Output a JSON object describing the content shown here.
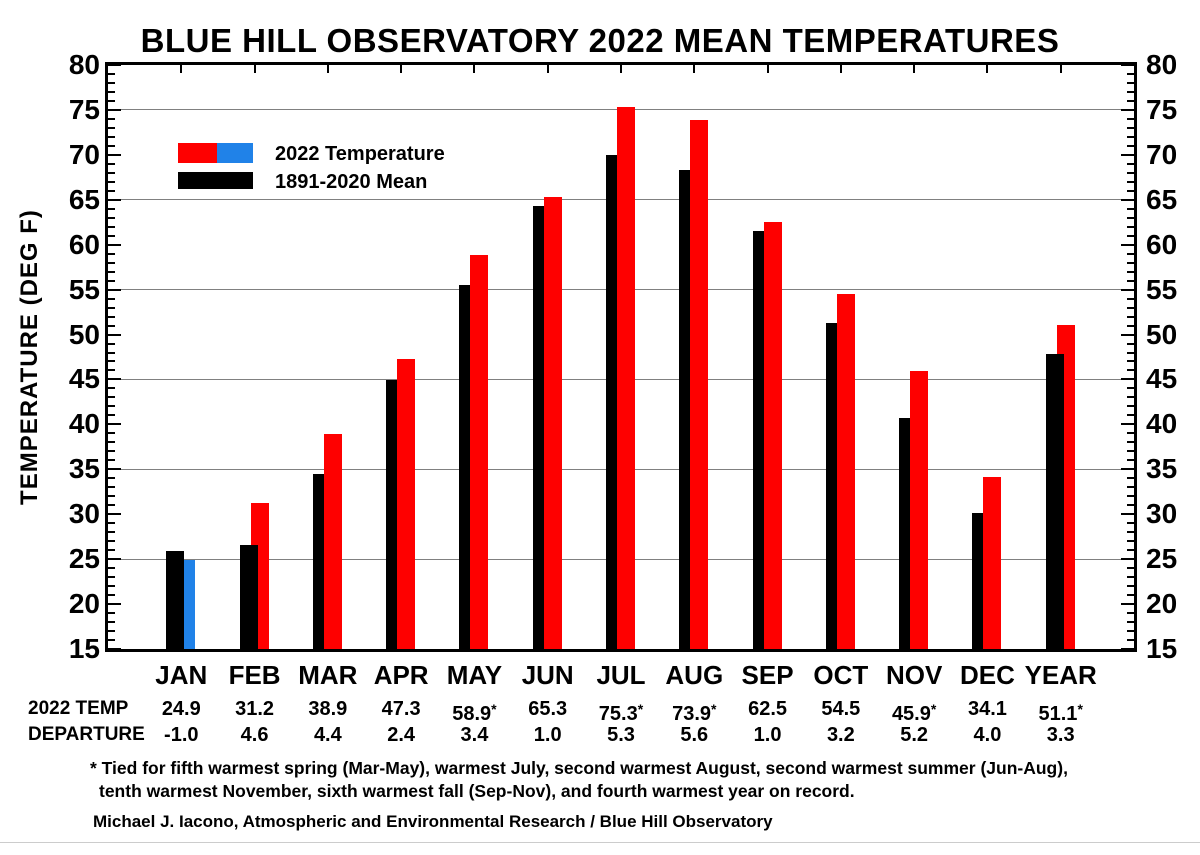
{
  "title": "BLUE HILL OBSERVATORY 2022 MEAN TEMPERATURES",
  "colors": {
    "red": "#fe0000",
    "blue": "#2082e8",
    "black": "#000000",
    "grid": "#808080"
  },
  "legend": {
    "entry_2022": {
      "label": "2022 Temperature",
      "swatch_left_color": "#fe0000",
      "swatch_right_color": "#2082e8"
    },
    "entry_mean": {
      "label": "1891-2020 Mean",
      "swatch_color": "#000000"
    }
  },
  "chart_data": {
    "type": "bar",
    "title": "BLUE HILL OBSERVATORY 2022 MEAN TEMPERATURES",
    "ylabel": "TEMPERATURE (DEG F)",
    "xlabel": "",
    "ylim": [
      15,
      80
    ],
    "ytick_step": 5,
    "minor_tick_step": 1,
    "grid": true,
    "gridlines_at": [
      25,
      35,
      45,
      55,
      65,
      75
    ],
    "legend_position": "top-left-inside",
    "categories": [
      "JAN",
      "FEB",
      "MAR",
      "APR",
      "MAY",
      "JUN",
      "JUL",
      "AUG",
      "SEP",
      "OCT",
      "NOV",
      "DEC",
      "YEAR"
    ],
    "series": [
      {
        "name": "2022 Temperature",
        "values": [
          24.9,
          31.2,
          38.9,
          47.3,
          58.9,
          65.3,
          75.3,
          73.9,
          62.5,
          54.5,
          45.9,
          34.1,
          51.1
        ],
        "bar_colors": [
          "#2082e8",
          "#fe0000",
          "#fe0000",
          "#fe0000",
          "#fe0000",
          "#fe0000",
          "#fe0000",
          "#fe0000",
          "#fe0000",
          "#fe0000",
          "#fe0000",
          "#fe0000",
          "#fe0000"
        ]
      },
      {
        "name": "1891-2020 Mean",
        "values": [
          25.9,
          26.6,
          34.5,
          44.9,
          55.5,
          64.3,
          70.0,
          68.3,
          61.5,
          51.3,
          40.7,
          30.1,
          47.8
        ],
        "color": "#000000"
      }
    ],
    "mean_bar_in_front": [
      true,
      true,
      false,
      false,
      false,
      false,
      false,
      false,
      false,
      false,
      false,
      false,
      true
    ]
  },
  "table": {
    "rows": [
      {
        "label": "2022 TEMP",
        "values": [
          "24.9",
          "31.2",
          "38.9",
          "47.3",
          "58.9*",
          "65.3",
          "75.3*",
          "73.9*",
          "62.5",
          "54.5",
          "45.9*",
          "34.1",
          "51.1*"
        ]
      },
      {
        "label": "DEPARTURE",
        "values": [
          "-1.0",
          "4.6",
          "4.4",
          "2.4",
          "3.4",
          "1.0",
          "5.3",
          "5.6",
          "1.0",
          "3.2",
          "5.2",
          "4.0",
          "3.3"
        ]
      }
    ]
  },
  "footnote": {
    "line1": "* Tied for fifth warmest spring (Mar-May), warmest July, second warmest August, second warmest summer (Jun-Aug),",
    "line2": "tenth warmest November, sixth warmest fall (Sep-Nov), and fourth warmest year on record."
  },
  "credit": "Michael J. Iacono, Atmospheric and Environmental Research / Blue Hill Observatory"
}
